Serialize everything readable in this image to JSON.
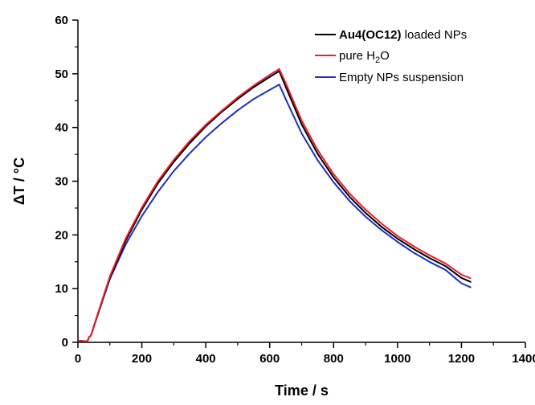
{
  "chart_data": {
    "type": "line",
    "title": "",
    "xlabel": "Time / s",
    "ylabel": "ΔT / °C",
    "xlim": [
      0,
      1400
    ],
    "ylim": [
      0,
      60
    ],
    "xticks": [
      0,
      200,
      400,
      600,
      800,
      1000,
      1200,
      1400
    ],
    "yticks": [
      0,
      10,
      20,
      30,
      40,
      50,
      60
    ],
    "grid": false,
    "legend_position": "top-right",
    "series": [
      {
        "name": "Au4(OC12) loaded NPs",
        "name_bold": "Au4(OC12)",
        "name_rest": " loaded NPs",
        "color": "#000000",
        "x": [
          0,
          30,
          35,
          40,
          45,
          50,
          100,
          150,
          200,
          250,
          300,
          350,
          400,
          450,
          500,
          550,
          600,
          630,
          650,
          700,
          750,
          800,
          850,
          900,
          950,
          1000,
          1050,
          1100,
          1150,
          1200,
          1230
        ],
        "y": [
          0.3,
          0.2,
          1.0,
          1.2,
          2.0,
          3.0,
          12.0,
          19.0,
          24.7,
          29.6,
          33.6,
          37.1,
          40.2,
          42.9,
          45.3,
          47.5,
          49.4,
          50.5,
          47.6,
          40.6,
          35.1,
          30.7,
          27.1,
          24.1,
          21.5,
          19.3,
          17.4,
          15.7,
          14.2,
          12.0,
          11.2
        ]
      },
      {
        "name": "pure H₂O",
        "name_main": "pure H",
        "name_sub": "2",
        "name_tail": "O",
        "color": "#e8202a",
        "x": [
          0,
          30,
          35,
          40,
          45,
          50,
          100,
          150,
          200,
          250,
          300,
          350,
          400,
          450,
          500,
          550,
          600,
          630,
          650,
          700,
          750,
          800,
          850,
          900,
          950,
          1000,
          1050,
          1100,
          1150,
          1200,
          1230
        ],
        "y": [
          0.3,
          0.2,
          1.0,
          1.2,
          2.0,
          3.1,
          12.3,
          19.4,
          25.1,
          30.0,
          34.0,
          37.5,
          40.5,
          43.1,
          45.6,
          47.8,
          49.8,
          50.9,
          48.3,
          41.3,
          35.8,
          31.3,
          27.7,
          24.7,
          22.1,
          19.8,
          17.9,
          16.2,
          14.7,
          12.6,
          11.9
        ]
      },
      {
        "name": "Empty NPs suspension",
        "color": "#1c2fc4",
        "x": [
          0,
          30,
          35,
          40,
          45,
          50,
          100,
          150,
          200,
          250,
          300,
          350,
          400,
          450,
          500,
          550,
          600,
          630,
          650,
          700,
          750,
          800,
          850,
          900,
          950,
          1000,
          1050,
          1100,
          1150,
          1200,
          1230
        ],
        "y": [
          0.3,
          0.2,
          1.0,
          1.2,
          2.0,
          3.0,
          11.8,
          18.3,
          23.5,
          28.0,
          31.9,
          35.2,
          38.2,
          40.8,
          43.2,
          45.3,
          47.0,
          48.0,
          45.3,
          38.9,
          33.9,
          29.8,
          26.3,
          23.4,
          20.9,
          18.7,
          16.7,
          15.0,
          13.5,
          11.0,
          10.2
        ]
      }
    ]
  }
}
